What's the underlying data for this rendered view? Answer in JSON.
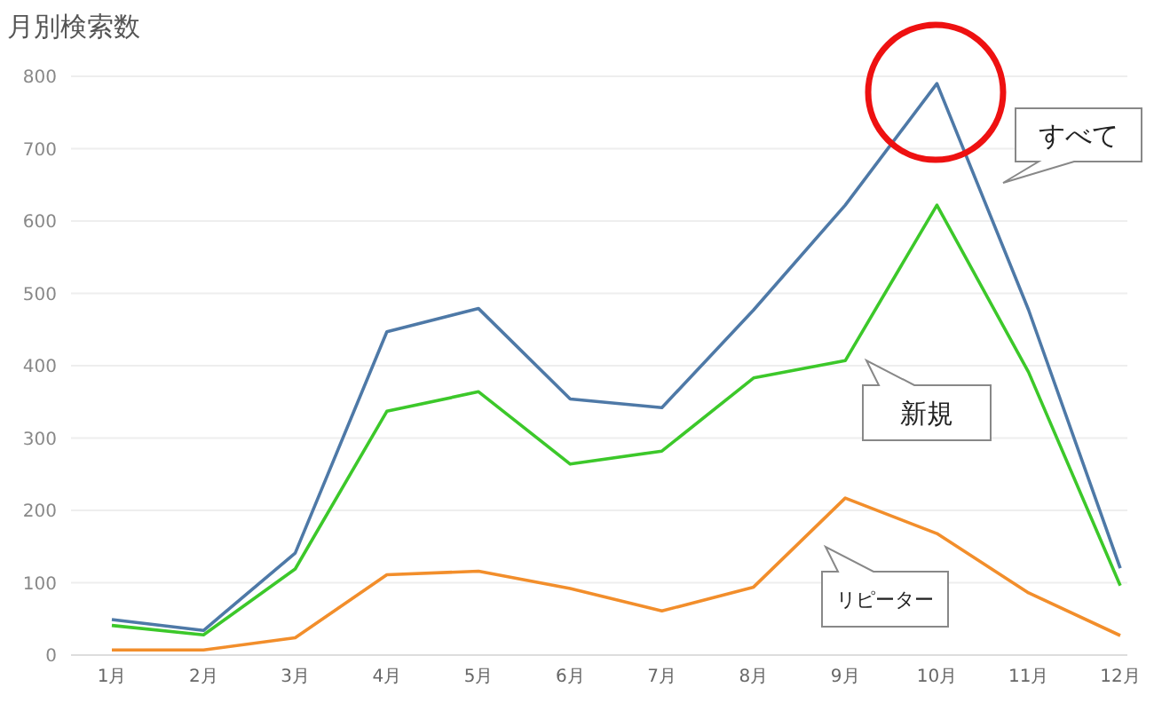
{
  "chart_data": {
    "type": "line",
    "title": "月別検索数",
    "categories": [
      "1月",
      "2月",
      "3月",
      "4月",
      "5月",
      "6月",
      "7月",
      "8月",
      "9月",
      "10月",
      "11月",
      "12月"
    ],
    "series": [
      {
        "name": "すべて",
        "color": "#4e79a7",
        "values": [
          49,
          34,
          141,
          447,
          479,
          354,
          342,
          477,
          622,
          790,
          477,
          120
        ]
      },
      {
        "name": "新規",
        "color": "#3cc82a",
        "values": [
          41,
          28,
          119,
          337,
          364,
          264,
          282,
          383,
          407,
          622,
          391,
          96
        ]
      },
      {
        "name": "リピーター",
        "color": "#f28e2b",
        "values": [
          7,
          7,
          24,
          111,
          116,
          92,
          61,
          94,
          217,
          168,
          86,
          27
        ]
      }
    ],
    "ylim": [
      0,
      800
    ],
    "yticks": [
      0,
      100,
      200,
      300,
      400,
      500,
      600,
      700,
      800
    ],
    "grid": "y",
    "marker": "none",
    "line_style": "solid"
  }
}
